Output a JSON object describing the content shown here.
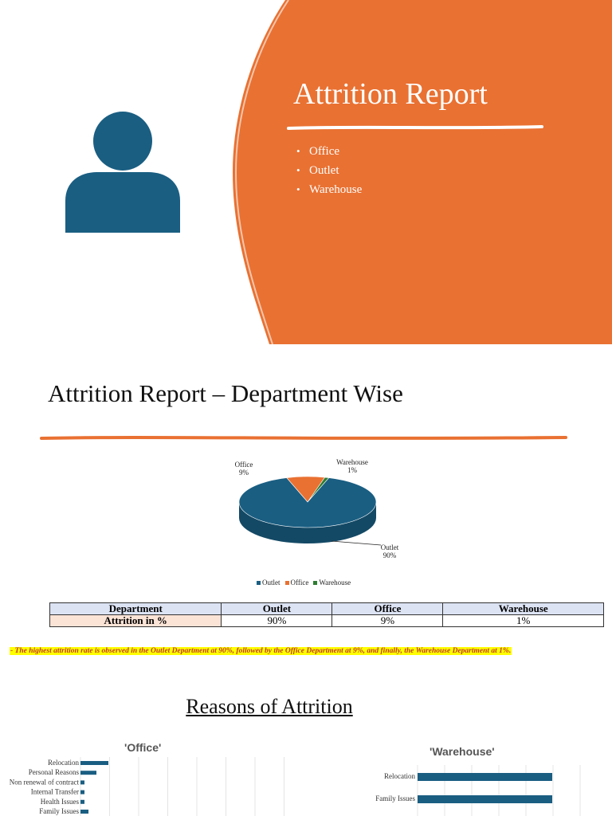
{
  "cover": {
    "title": "Attrition Report",
    "bullets": [
      "Office",
      "Outlet",
      "Warehouse"
    ],
    "accent_color": "#E97132",
    "icon_color": "#1A5E82",
    "icon": "person-icon"
  },
  "department_section": {
    "title": "Attrition Report – Department Wise"
  },
  "chart_data": [
    {
      "type": "pie",
      "title": "",
      "labels": [
        "Outlet",
        "Office",
        "Warehouse"
      ],
      "values": [
        90,
        9,
        1
      ],
      "data_labels": [
        "Outlet\n90%",
        "Office\n9%",
        "Warehouse\n1%"
      ],
      "colors": [
        "#1A5E82",
        "#E97132",
        "#2E7D32"
      ],
      "legend": "bottom"
    },
    {
      "type": "bar",
      "orientation": "horizontal",
      "title": "'Office'",
      "categories": [
        "Relocation",
        "Personal Reasons",
        "Non renewal of contract",
        "Internal Transfer",
        "Health Issues",
        "Family Issues"
      ],
      "values": [
        7,
        4,
        1,
        1,
        1,
        2
      ],
      "color": "#1A5E82"
    },
    {
      "type": "bar",
      "orientation": "horizontal",
      "title": "'Warehouse'",
      "categories": [
        "Relocation",
        "Family Issues"
      ],
      "values": [
        1,
        1
      ],
      "color": "#1A5E82"
    }
  ],
  "table": {
    "headers": [
      "Department",
      "Outlet",
      "Office",
      "Warehouse"
    ],
    "row_label": "Attrition in %",
    "values": [
      "90%",
      "9%",
      "1%"
    ]
  },
  "note": "- The highest attrition rate is observed in the Outlet Department at 90%, followed by the Office Department at 9%, and finally, the Warehouse Department at 1%.",
  "reasons_title": "Reasons of Attrition"
}
